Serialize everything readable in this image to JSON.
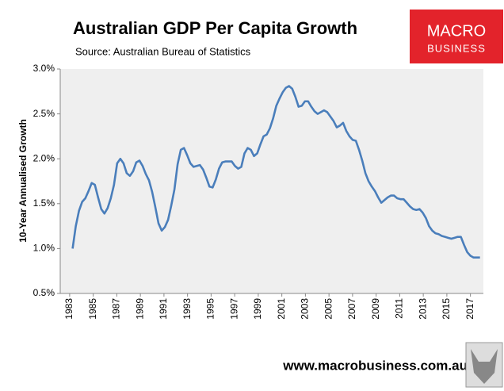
{
  "chart_data": {
    "type": "line",
    "title": "Australian GDP Per Capita Growth",
    "subtitle": "Source: Australian Bureau of Statistics",
    "ylabel": "10-Year Annualised Growth",
    "logo": {
      "top": "MACRO",
      "bottom": "BUSINESS"
    },
    "footer": "www.macrobusiness.com.au",
    "color": "#4a7ebb",
    "xlim": [
      1982.2,
      2018.1
    ],
    "xticks": [
      1983,
      1985,
      1987,
      1989,
      1991,
      1993,
      1995,
      1997,
      1999,
      2001,
      2003,
      2005,
      2007,
      2009,
      2011,
      2013,
      2015,
      2017
    ],
    "ylim": [
      0.5,
      3.0
    ],
    "yticks": [
      {
        "value": 0.5,
        "label": "0.5%"
      },
      {
        "value": 1.0,
        "label": "1.0%"
      },
      {
        "value": 1.5,
        "label": "1.5%"
      },
      {
        "value": 2.0,
        "label": "2.0%"
      },
      {
        "value": 2.5,
        "label": "2.5%"
      },
      {
        "value": 3.0,
        "label": "3.0%"
      }
    ],
    "x": [
      1983.25,
      1983.52,
      1983.79,
      1984.06,
      1984.33,
      1984.6,
      1984.87,
      1985.14,
      1985.41,
      1985.68,
      1985.95,
      1986.22,
      1986.49,
      1986.76,
      1987.03,
      1987.3,
      1987.57,
      1987.84,
      1988.11,
      1988.38,
      1988.65,
      1988.92,
      1989.19,
      1989.46,
      1989.73,
      1990,
      1990.27,
      1990.54,
      1990.81,
      1991.08,
      1991.35,
      1991.62,
      1991.89,
      1992.16,
      1992.43,
      1992.7,
      1992.97,
      1993.24,
      1993.51,
      1993.78,
      1994.05,
      1994.32,
      1994.59,
      1994.86,
      1995.13,
      1995.4,
      1995.67,
      1995.94,
      1996.21,
      1996.48,
      1996.75,
      1997.02,
      1997.29,
      1997.56,
      1997.83,
      1998.1,
      1998.37,
      1998.64,
      1998.91,
      1999.18,
      1999.45,
      1999.72,
      1999.99,
      2000.26,
      2000.53,
      2000.8,
      2001.07,
      2001.34,
      2001.61,
      2001.88,
      2002.15,
      2002.42,
      2002.69,
      2002.96,
      2003.23,
      2003.5,
      2003.77,
      2004.04,
      2004.31,
      2004.58,
      2004.85,
      2005.12,
      2005.39,
      2005.66,
      2005.93,
      2006.2,
      2006.47,
      2006.74,
      2007.01,
      2007.28,
      2007.55,
      2007.82,
      2008.09,
      2008.36,
      2008.63,
      2008.9,
      2009.17,
      2009.44,
      2009.71,
      2009.98,
      2010.25,
      2010.52,
      2010.79,
      2011.06,
      2011.33,
      2011.6,
      2011.87,
      2012.14,
      2012.41,
      2012.68,
      2012.95,
      2013.22,
      2013.49,
      2013.76,
      2014.03,
      2014.3,
      2014.57,
      2014.84,
      2015.11,
      2015.38,
      2015.65,
      2015.92,
      2016.19,
      2016.46,
      2016.73,
      2017,
      2017.27,
      2017.54,
      2017.81
    ],
    "values": [
      1.0,
      1.25,
      1.42,
      1.52,
      1.56,
      1.64,
      1.73,
      1.71,
      1.57,
      1.44,
      1.39,
      1.45,
      1.56,
      1.71,
      1.95,
      2.0,
      1.95,
      1.84,
      1.81,
      1.86,
      1.96,
      1.98,
      1.92,
      1.83,
      1.76,
      1.63,
      1.46,
      1.28,
      1.2,
      1.24,
      1.32,
      1.48,
      1.66,
      1.94,
      2.1,
      2.12,
      2.04,
      1.95,
      1.91,
      1.92,
      1.93,
      1.88,
      1.79,
      1.69,
      1.68,
      1.77,
      1.89,
      1.96,
      1.97,
      1.97,
      1.97,
      1.92,
      1.89,
      1.91,
      2.06,
      2.12,
      2.1,
      2.03,
      2.06,
      2.16,
      2.25,
      2.27,
      2.34,
      2.45,
      2.59,
      2.67,
      2.74,
      2.79,
      2.81,
      2.78,
      2.69,
      2.58,
      2.59,
      2.64,
      2.64,
      2.58,
      2.53,
      2.5,
      2.52,
      2.54,
      2.52,
      2.47,
      2.42,
      2.35,
      2.37,
      2.4,
      2.31,
      2.25,
      2.21,
      2.2,
      2.1,
      1.98,
      1.84,
      1.75,
      1.69,
      1.64,
      1.57,
      1.51,
      1.54,
      1.57,
      1.59,
      1.59,
      1.56,
      1.55,
      1.55,
      1.51,
      1.47,
      1.44,
      1.43,
      1.44,
      1.4,
      1.34,
      1.25,
      1.2,
      1.17,
      1.16,
      1.14,
      1.13,
      1.12,
      1.11,
      1.12,
      1.13,
      1.13,
      1.04,
      0.96,
      0.92,
      0.9,
      0.9,
      0.9
    ]
  }
}
